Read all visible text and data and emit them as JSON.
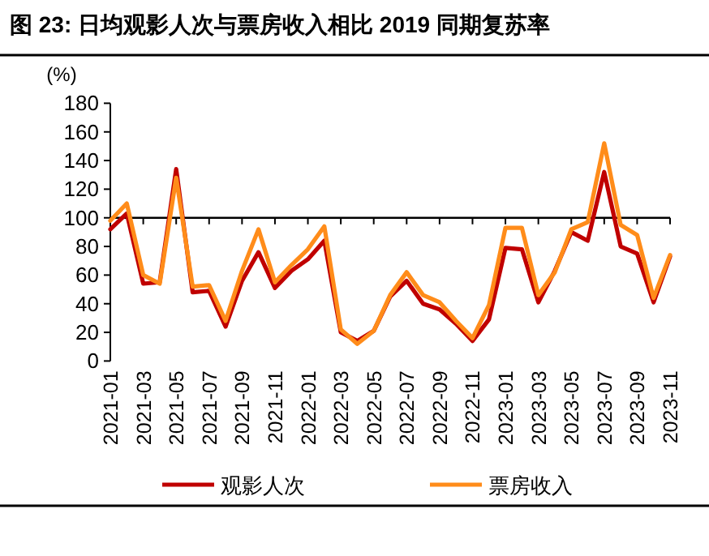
{
  "chart_data": {
    "type": "line",
    "title": "图 23: 日均观影人次与票房收入相比 2019 同期复苏率",
    "ylabel": "(%)",
    "categories": [
      "2021-01",
      null,
      "2021-03",
      null,
      "2021-05",
      null,
      "2021-07",
      null,
      "2021-09",
      null,
      "2021-11",
      null,
      "2022-01",
      null,
      "2022-03",
      null,
      "2022-05",
      null,
      "2022-07",
      null,
      "2022-09",
      null,
      "2022-11",
      null,
      "2023-01",
      null,
      "2023-03",
      null,
      "2023-05",
      null,
      "2023-07",
      null,
      "2023-09",
      null,
      "2023-11"
    ],
    "series": [
      {
        "name": "观影人次",
        "color": "#c00000",
        "values": [
          92,
          103,
          54,
          55,
          134,
          48,
          49,
          24,
          56,
          76,
          51,
          63,
          71,
          84,
          20,
          14,
          21,
          45,
          56,
          40,
          36,
          26,
          14,
          29,
          79,
          78,
          41,
          63,
          90,
          84,
          132,
          80,
          75,
          41,
          73
        ]
      },
      {
        "name": "票房收入",
        "color": "#ff8c1a",
        "values": [
          98,
          110,
          60,
          54,
          128,
          52,
          53,
          28,
          63,
          92,
          55,
          67,
          78,
          94,
          22,
          12,
          21,
          46,
          62,
          46,
          41,
          28,
          16,
          39,
          93,
          93,
          46,
          62,
          92,
          97,
          152,
          95,
          88,
          44,
          74
        ]
      }
    ],
    "ylim": [
      0,
      180
    ],
    "yticks": [
      0,
      20,
      40,
      60,
      80,
      100,
      120,
      140,
      160,
      180
    ],
    "ref_lines": [
      {
        "axis": "y",
        "value": 100,
        "color": "#000000"
      }
    ],
    "legend": "bottom",
    "marker": "none",
    "line_style": "solid",
    "grid": false
  }
}
